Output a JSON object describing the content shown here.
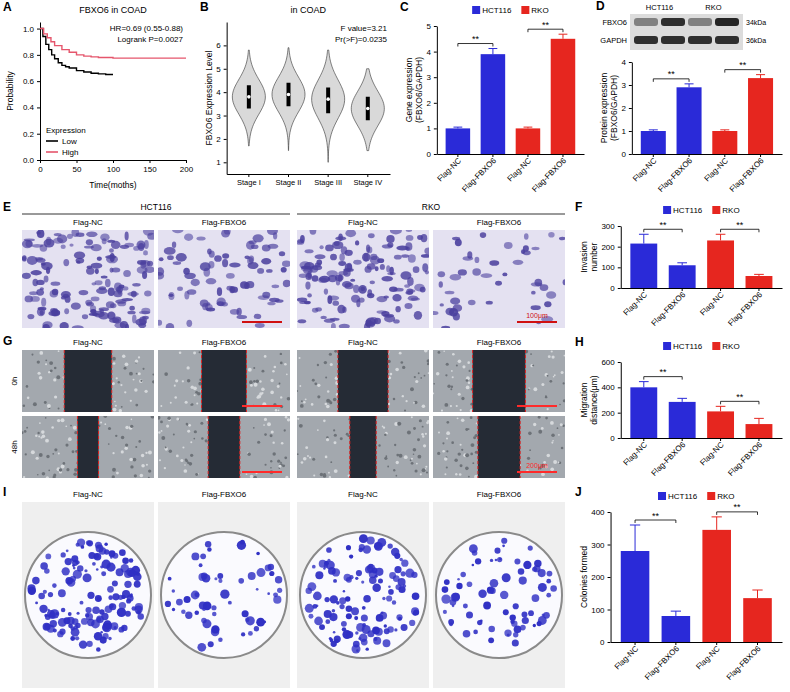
{
  "panel_labels": [
    "A",
    "B",
    "C",
    "D",
    "E",
    "F",
    "G",
    "H",
    "I",
    "J"
  ],
  "chart_data": [
    {
      "type": "line",
      "title": "FBXO6 in COAD",
      "x_label": "Time(moths)",
      "y_label": "Probability",
      "annotations": [
        "HR=0.69 (0.55-0.88)",
        "Logrank P=0.0027",
        "Expression"
      ],
      "line_style": "step",
      "legend": "bottom-left",
      "xlim": [
        0,
        200
      ],
      "xticks": [
        0,
        50,
        100,
        150,
        200
      ],
      "ylim": [
        0,
        1.05
      ],
      "yticks": [
        {
          "value": 0,
          "label": "0.0"
        },
        0.2,
        0.4,
        0.6,
        0.8,
        {
          "value": 1,
          "label": "1.0"
        }
      ],
      "series": [
        {
          "name": "Low",
          "color": "#000000",
          "x": [
            0,
            4,
            8,
            12,
            16,
            20,
            25,
            30,
            35,
            40,
            50,
            60,
            70,
            80,
            90,
            100
          ],
          "values": [
            1,
            0.94,
            0.88,
            0.84,
            0.8,
            0.77,
            0.74,
            0.72,
            0.71,
            0.7,
            0.68,
            0.67,
            0.66,
            0.655,
            0.65,
            0.65
          ]
        },
        {
          "name": "High",
          "color": "#e5566c",
          "x": [
            0,
            5,
            10,
            15,
            20,
            30,
            40,
            50,
            60,
            70,
            80,
            100,
            120,
            150,
            180,
            200
          ],
          "values": [
            1,
            0.96,
            0.93,
            0.9,
            0.87,
            0.84,
            0.82,
            0.8,
            0.79,
            0.785,
            0.78,
            0.775,
            0.775,
            0.775,
            0.775,
            0.775
          ]
        }
      ]
    },
    {
      "type": "violin",
      "title": "in COAD",
      "y_label": "FBXO6 Expression Level",
      "annotations": [
        "F value=3.21",
        "Pr(>F)=0.0235"
      ],
      "categories": [
        "Stage I",
        "Stage II",
        "Stage III",
        "Stage IV"
      ],
      "color": "#d9d9d9",
      "ylim": [
        0.5,
        7
      ],
      "yticks": [
        1,
        2,
        3,
        4,
        5,
        6
      ],
      "min": [
        1.7,
        1.5,
        1.0,
        1.5
      ],
      "q1": [
        3.3,
        3.4,
        3.1,
        2.8
      ],
      "median": [
        3.8,
        3.9,
        3.7,
        3.3
      ],
      "q3": [
        4.3,
        4.4,
        4.2,
        3.8
      ],
      "max": [
        5.8,
        5.9,
        5.8,
        5.0
      ]
    },
    {
      "type": "bar",
      "y_label": "Gene expression (FBXO6/GAPDH)",
      "categories": [
        "Flag-NC",
        "Flag-FBXO6",
        "Flag-NC",
        "Flag-FBXO6"
      ],
      "ylim": [
        0,
        5
      ],
      "yticks": [
        0,
        1,
        2,
        3,
        4,
        5
      ],
      "legend": "top",
      "annotations": [
        "**",
        "**"
      ],
      "series": [
        {
          "name": "HCT116",
          "color": "#2a2ad8",
          "values": [
            1,
            3.9,
            null,
            null
          ],
          "errors": [
            0.05,
            0.22,
            null,
            null
          ]
        },
        {
          "name": "RKO",
          "color": "#e6261f",
          "values": [
            null,
            null,
            1,
            4.5
          ],
          "errors": [
            null,
            null,
            0.05,
            0.18
          ]
        }
      ]
    },
    {
      "type": "bar",
      "y_label": "Protein expression (FBXO6/GAPDH)",
      "categories": [
        "Flag-NC",
        "Flag-FBXO6",
        "Flag-NC",
        "Flag-FBXO6"
      ],
      "ylim": [
        0,
        4
      ],
      "yticks": [
        0,
        1,
        2,
        3,
        4
      ],
      "annotations": [
        "**",
        "**"
      ],
      "series": [
        {
          "color": "#2a2ad8",
          "values": [
            1,
            2.9,
            null,
            null
          ],
          "errors": [
            0.05,
            0.15,
            null,
            null
          ]
        },
        {
          "color": "#e6261f",
          "values": [
            null,
            null,
            1,
            3.3
          ],
          "errors": [
            null,
            null,
            0.05,
            0.15
          ]
        }
      ]
    },
    {
      "type": "bar",
      "y_label": "Invasion number",
      "categories": [
        "Flag-NC",
        "Flag-FBXO6",
        "Flag-NC",
        "Flag-FBXO6"
      ],
      "ylim": [
        0,
        300
      ],
      "yticks": [
        0,
        100,
        200,
        300
      ],
      "legend": "top",
      "annotations": [
        "**",
        "**"
      ],
      "series": [
        {
          "name": "HCT116",
          "color": "#2a2ad8",
          "values": [
            215,
            110,
            null,
            null
          ],
          "errors": [
            45,
            12,
            null,
            null
          ]
        },
        {
          "name": "RKO",
          "color": "#e6261f",
          "values": [
            null,
            null,
            230,
            58
          ],
          "errors": [
            null,
            null,
            30,
            8
          ]
        }
      ]
    },
    {
      "type": "bar",
      "y_label": "Migration distance(μm)",
      "categories": [
        "Flag-NC",
        "Flag-FBXO6",
        "Flag-NC",
        "Flag-FBXO6"
      ],
      "ylim": [
        0,
        600
      ],
      "yticks": [
        0,
        200,
        400,
        600
      ],
      "legend": "top",
      "annotations": [
        "**",
        "**"
      ],
      "series": [
        {
          "name": "HCT116",
          "color": "#2a2ad8",
          "values": [
            400,
            285,
            null,
            null
          ],
          "errors": [
            45,
            28,
            null,
            null
          ]
        },
        {
          "name": "RKO",
          "color": "#e6261f",
          "values": [
            null,
            null,
            210,
            110
          ],
          "errors": [
            null,
            null,
            40,
            45
          ]
        }
      ]
    },
    {
      "type": "bar",
      "y_label": "Colonies formed",
      "categories": [
        "Flag-NC",
        "Flag-FBXO6",
        "Flag-NC",
        "Flag-FBXO6"
      ],
      "ylim": [
        0,
        400
      ],
      "yticks": [
        0,
        100,
        200,
        300,
        400
      ],
      "legend": "top",
      "annotations": [
        "**",
        "**"
      ],
      "series": [
        {
          "name": "HCT116",
          "color": "#2a2ad8",
          "values": [
            280,
            80,
            null,
            null
          ],
          "errors": [
            80,
            15,
            null,
            null
          ]
        },
        {
          "name": "RKO",
          "color": "#e6261f",
          "values": [
            null,
            null,
            345,
            135
          ],
          "errors": [
            null,
            null,
            40,
            25
          ]
        }
      ]
    }
  ],
  "images": {
    "D": {
      "groups": [
        "HCT116",
        "RKO"
      ],
      "rows": [
        "FBXO6",
        "GAPDH"
      ],
      "sizes": [
        "34kDa",
        "36kDa"
      ]
    },
    "E": {
      "groups": [
        "HCT116",
        "RKO"
      ],
      "columns": [
        "Flag-NC",
        "Flag-FBXO6",
        "Flag-NC",
        "Flag-FBXO6"
      ],
      "scale": "100μm"
    },
    "G": {
      "columns": [
        "Flag-NC",
        "Flag-FBXO6",
        "Flag-NC",
        "Flag-FBXO6"
      ],
      "rows": [
        "0h",
        "48h"
      ],
      "scale": "200μm"
    },
    "I": {
      "columns": [
        "Flag-NC",
        "Flag-FBXO6",
        "Flag-NC",
        "Flag-FBXO6"
      ]
    }
  }
}
